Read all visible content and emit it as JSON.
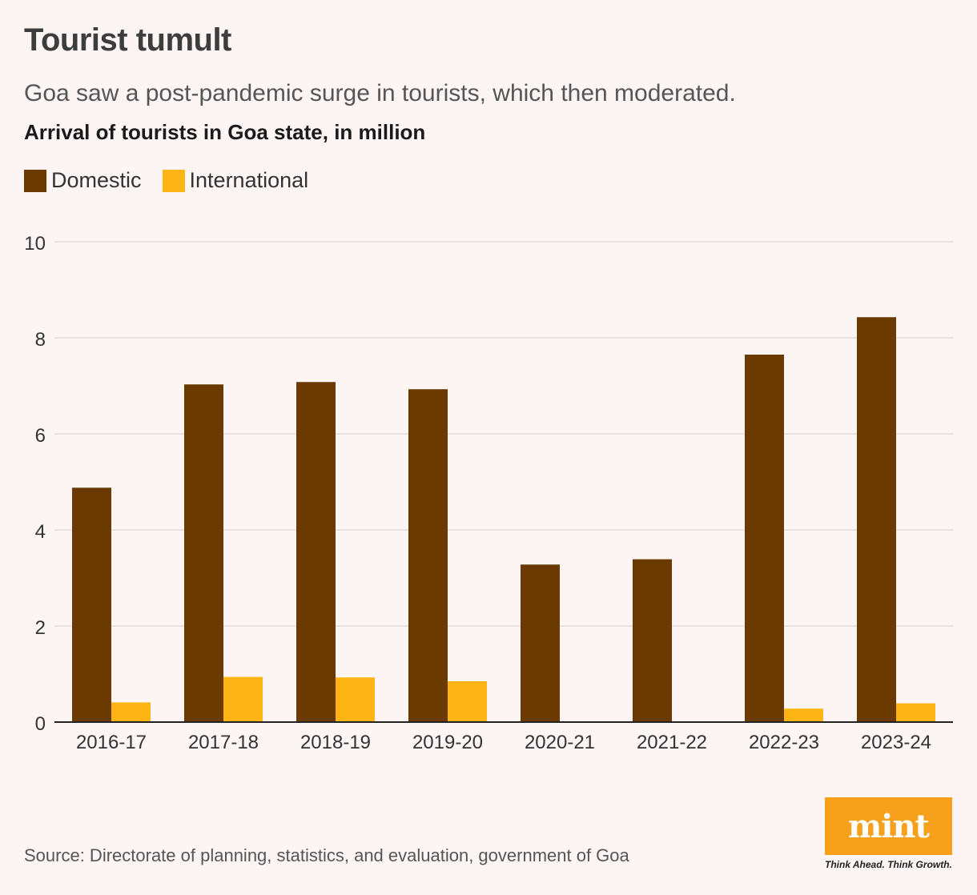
{
  "title": "Tourist tumult",
  "subtitle": "Goa saw a post-pandemic surge in tourists, which then moderated.",
  "chart_heading": "Arrival of tourists in Goa state, in million",
  "source": "Source: Directorate of planning, statistics, and evaluation, government of Goa",
  "logo": {
    "text": "mint",
    "tagline": "Think Ahead. Think Growth.",
    "color": "#f7a01c"
  },
  "chart_data": {
    "type": "bar",
    "categories": [
      "2016-17",
      "2017-18",
      "2018-19",
      "2019-20",
      "2020-21",
      "2021-22",
      "2022-23",
      "2023-24"
    ],
    "series": [
      {
        "name": "Domestic",
        "color": "#6b3a00",
        "values": [
          4.88,
          7.03,
          7.08,
          6.93,
          3.28,
          3.39,
          7.65,
          8.43
        ]
      },
      {
        "name": "International",
        "color": "#fdb515",
        "values": [
          0.41,
          0.94,
          0.93,
          0.85,
          0.0,
          0.0,
          0.28,
          0.39
        ]
      }
    ],
    "yticks": [
      0,
      2,
      4,
      6,
      8,
      10
    ],
    "ylim": [
      0,
      10
    ],
    "grid": true,
    "legend_position": "top-left"
  }
}
